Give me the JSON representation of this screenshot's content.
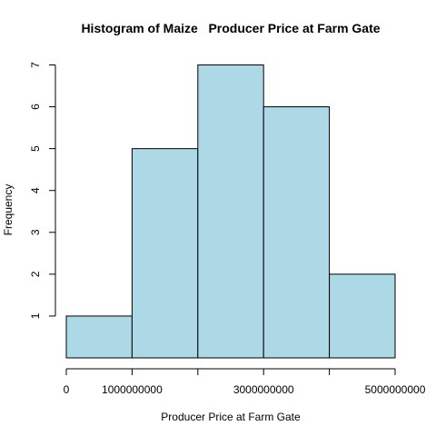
{
  "chart_data": {
    "type": "bar",
    "title": "Histogram of Maize   Producer Price at Farm Gate",
    "xlabel": "Producer Price at Farm Gate",
    "ylabel": "Frequency",
    "bins": [
      {
        "start": 0,
        "end": 1000000000,
        "count": 1
      },
      {
        "start": 1000000000,
        "end": 2000000000,
        "count": 5
      },
      {
        "start": 2000000000,
        "end": 3000000000,
        "count": 7
      },
      {
        "start": 3000000000,
        "end": 4000000000,
        "count": 6
      },
      {
        "start": 4000000000,
        "end": 5000000000,
        "count": 2
      }
    ],
    "xlim": [
      0,
      5000000000
    ],
    "ylim": [
      0,
      7
    ],
    "x_ticks": [
      0,
      1000000000,
      2000000000,
      3000000000,
      4000000000,
      5000000000
    ],
    "x_tick_labels": [
      "0",
      "1000000000",
      "",
      "3000000000",
      "",
      "5000000000"
    ],
    "y_ticks": [
      1,
      2,
      3,
      4,
      5,
      6,
      7
    ],
    "y_tick_labels": [
      "1",
      "2",
      "3",
      "4",
      "5",
      "6",
      "7"
    ],
    "bar_color": "#add8e6",
    "grid": false
  }
}
